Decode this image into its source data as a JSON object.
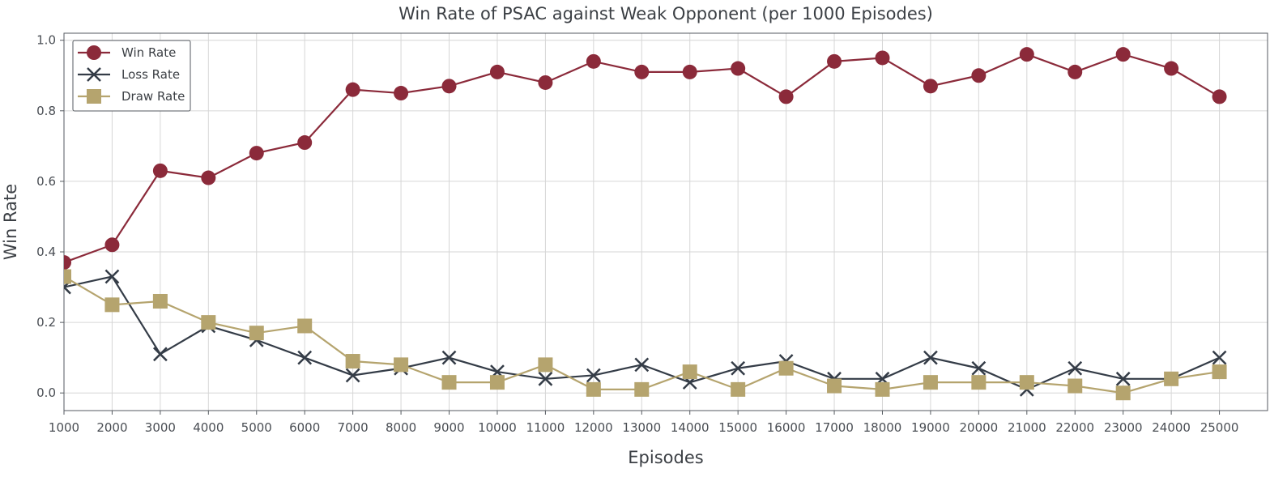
{
  "chart_data": {
    "type": "line",
    "title": "Win Rate of PSAC against Weak Opponent (per 1000 Episodes)",
    "xlabel": "Episodes",
    "ylabel": "Win Rate",
    "x": [
      1000,
      2000,
      3000,
      4000,
      5000,
      6000,
      7000,
      8000,
      9000,
      10000,
      11000,
      12000,
      13000,
      14000,
      15000,
      16000,
      17000,
      18000,
      19000,
      20000,
      21000,
      22000,
      23000,
      24000,
      25000
    ],
    "xlim": [
      1000,
      26000
    ],
    "ylim": [
      -0.05,
      1.02
    ],
    "xticks": [
      "1000",
      "2000",
      "3000",
      "4000",
      "5000",
      "6000",
      "7000",
      "8000",
      "9000",
      "10000",
      "11000",
      "12000",
      "13000",
      "14000",
      "15000",
      "16000",
      "17000",
      "18000",
      "19000",
      "20000",
      "21000",
      "22000",
      "23000",
      "24000",
      "25000"
    ],
    "yticks": [
      0.0,
      0.2,
      0.4,
      0.6,
      0.8,
      1.0
    ],
    "ytick_labels": [
      "0.0",
      "0.2",
      "0.4",
      "0.6",
      "0.8",
      "1.0"
    ],
    "grid": true,
    "legend_position": "top-left",
    "series": [
      {
        "name": "Win Rate",
        "color": "#8b2a3a",
        "marker": "circle",
        "values": [
          0.37,
          0.42,
          0.63,
          0.61,
          0.68,
          0.71,
          0.86,
          0.85,
          0.87,
          0.91,
          0.88,
          0.94,
          0.91,
          0.91,
          0.92,
          0.84,
          0.94,
          0.95,
          0.87,
          0.9,
          0.96,
          0.91,
          0.96,
          0.92,
          0.84
        ]
      },
      {
        "name": "Loss Rate",
        "color": "#343c47",
        "marker": "x",
        "values": [
          0.3,
          0.33,
          0.11,
          0.19,
          0.15,
          0.1,
          0.05,
          0.07,
          0.1,
          0.06,
          0.04,
          0.05,
          0.08,
          0.03,
          0.07,
          0.09,
          0.04,
          0.04,
          0.1,
          0.07,
          0.01,
          0.07,
          0.04,
          0.04,
          0.1
        ]
      },
      {
        "name": "Draw Rate",
        "color": "#b5a46e",
        "marker": "square",
        "values": [
          0.33,
          0.25,
          0.26,
          0.2,
          0.17,
          0.19,
          0.09,
          0.08,
          0.03,
          0.03,
          0.08,
          0.01,
          0.01,
          0.06,
          0.01,
          0.07,
          0.02,
          0.01,
          0.03,
          0.03,
          0.03,
          0.02,
          0.0,
          0.04,
          0.06
        ]
      }
    ]
  }
}
